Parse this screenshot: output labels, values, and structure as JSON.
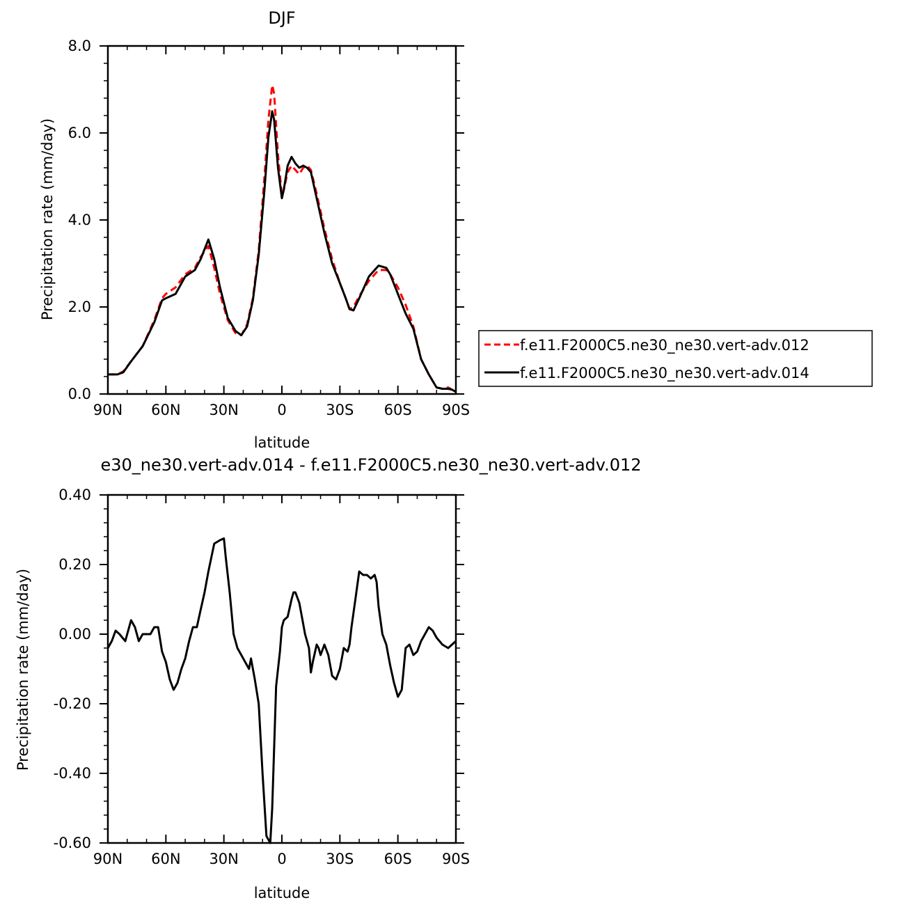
{
  "chart_data": [
    {
      "type": "line",
      "title": "DJF",
      "xlabel": "latitude",
      "ylabel": "Precipitation rate (mm/day)",
      "xlim": [
        -90,
        90
      ],
      "ylim": [
        0,
        8
      ],
      "xticks": [
        -90,
        -60,
        -30,
        0,
        30,
        60,
        90
      ],
      "xtick_labels": [
        "90N",
        "60N",
        "30N",
        "0",
        "30S",
        "60S",
        "90S"
      ],
      "yticks": [
        0,
        2,
        4,
        6,
        8
      ],
      "ytick_labels": [
        "0.0",
        "2.0",
        "4.0",
        "6.0",
        "8.0"
      ],
      "legend_position": "right",
      "series": [
        {
          "name": "f.e11.F2000C5.ne30_ne30.vert-adv.012",
          "color": "#ff0000",
          "dash": "dashed",
          "x": [
            -90,
            -85,
            -82,
            -78,
            -72,
            -66,
            -62,
            -60,
            -55,
            -50,
            -45,
            -42,
            -38,
            -35,
            -32,
            -28,
            -24,
            -21,
            -18,
            -15,
            -12,
            -9,
            -7,
            -5,
            -4,
            -2,
            0,
            1,
            3,
            5,
            7,
            9,
            11,
            13,
            15,
            18,
            22,
            26,
            30,
            33,
            35,
            37,
            40,
            45,
            50,
            54,
            56,
            60,
            64,
            68,
            72,
            76,
            80,
            83,
            86,
            88,
            90
          ],
          "y": [
            0.45,
            0.45,
            0.52,
            0.75,
            1.1,
            1.7,
            2.2,
            2.3,
            2.45,
            2.75,
            2.9,
            3.15,
            3.4,
            2.9,
            2.3,
            1.7,
            1.4,
            1.35,
            1.6,
            2.2,
            3.3,
            5.0,
            6.3,
            7.1,
            6.9,
            5.5,
            4.55,
            4.7,
            5.1,
            5.25,
            5.15,
            5.05,
            5.2,
            5.25,
            5.15,
            4.6,
            3.8,
            3.1,
            2.55,
            2.2,
            1.95,
            2.0,
            2.25,
            2.6,
            2.85,
            2.85,
            2.75,
            2.45,
            2.05,
            1.55,
            0.8,
            0.45,
            0.15,
            0.12,
            0.15,
            0.1,
            0.05
          ]
        },
        {
          "name": "f.e11.F2000C5.ne30_ne30.vert-adv.014",
          "color": "#000000",
          "dash": "solid",
          "x": [
            -90,
            -85,
            -82,
            -78,
            -72,
            -66,
            -62,
            -60,
            -55,
            -50,
            -45,
            -42,
            -38,
            -35,
            -32,
            -28,
            -24,
            -21,
            -18,
            -15,
            -12,
            -9,
            -7,
            -5,
            -4,
            -2,
            0,
            1,
            3,
            5,
            7,
            9,
            11,
            13,
            15,
            18,
            22,
            26,
            30,
            33,
            35,
            37,
            40,
            45,
            50,
            54,
            56,
            60,
            64,
            68,
            72,
            76,
            80,
            83,
            86,
            88,
            90
          ],
          "y": [
            0.45,
            0.45,
            0.5,
            0.75,
            1.1,
            1.65,
            2.15,
            2.2,
            2.3,
            2.7,
            2.85,
            3.1,
            3.55,
            3.1,
            2.45,
            1.75,
            1.45,
            1.35,
            1.55,
            2.15,
            3.2,
            4.7,
            5.9,
            6.5,
            6.3,
            5.2,
            4.5,
            4.7,
            5.25,
            5.45,
            5.3,
            5.2,
            5.25,
            5.2,
            5.1,
            4.5,
            3.7,
            3.0,
            2.55,
            2.2,
            1.95,
            1.92,
            2.2,
            2.7,
            2.95,
            2.9,
            2.75,
            2.3,
            1.85,
            1.5,
            0.8,
            0.45,
            0.15,
            0.12,
            0.12,
            0.1,
            0.05
          ]
        }
      ]
    },
    {
      "type": "line",
      "title": "e30_ne30.vert-adv.014 - f.e11.F2000C5.ne30_ne30.vert-adv.012",
      "xlabel": "latitude",
      "ylabel": "Precipitation rate (mm/day)",
      "xlim": [
        -90,
        90
      ],
      "ylim": [
        -0.6,
        0.4
      ],
      "xticks": [
        -90,
        -60,
        -30,
        0,
        30,
        60,
        90
      ],
      "xtick_labels": [
        "90N",
        "60N",
        "30N",
        "0",
        "30S",
        "60S",
        "90S"
      ],
      "yticks": [
        -0.6,
        -0.4,
        -0.2,
        0,
        0.2,
        0.4
      ],
      "ytick_labels": [
        "-0.60",
        "-0.40",
        "-0.20",
        "0.00",
        "0.20",
        "0.40"
      ],
      "series": [
        {
          "color": "#000000",
          "dash": "solid",
          "x": [
            -90,
            -88,
            -86,
            -84,
            -81,
            -78,
            -76,
            -74,
            -72,
            -70,
            -68,
            -66,
            -64,
            -62,
            -60,
            -58,
            -56,
            -54,
            -52,
            -50,
            -48,
            -46,
            -44,
            -42,
            -40,
            -38,
            -35,
            -32,
            -30,
            -29,
            -27,
            -25,
            -23,
            -21,
            -19,
            -17,
            -16,
            -14,
            -12,
            -10,
            -8,
            -6,
            -5,
            -3,
            -1,
            0,
            1,
            3,
            5,
            6,
            7,
            9,
            10,
            12,
            14,
            15,
            16,
            18,
            19,
            20,
            22,
            24,
            26,
            28,
            30,
            32,
            34,
            35,
            36,
            38,
            40,
            42,
            44,
            46,
            48,
            49,
            50,
            52,
            54,
            56,
            58,
            60,
            62,
            63,
            64,
            66,
            68,
            70,
            72,
            74,
            76,
            78,
            80,
            83,
            86,
            88,
            90
          ],
          "y": [
            -0.04,
            -0.02,
            0.01,
            0.0,
            -0.02,
            0.04,
            0.02,
            -0.02,
            0.0,
            0.0,
            0.0,
            0.02,
            0.02,
            -0.05,
            -0.08,
            -0.13,
            -0.16,
            -0.14,
            -0.1,
            -0.07,
            -0.02,
            0.02,
            0.02,
            0.07,
            0.12,
            0.18,
            0.26,
            0.27,
            0.275,
            0.22,
            0.12,
            0.0,
            -0.04,
            -0.06,
            -0.08,
            -0.1,
            -0.07,
            -0.13,
            -0.2,
            -0.4,
            -0.58,
            -0.6,
            -0.5,
            -0.15,
            -0.05,
            0.02,
            0.04,
            0.05,
            0.1,
            0.12,
            0.12,
            0.09,
            0.06,
            0.0,
            -0.04,
            -0.11,
            -0.08,
            -0.03,
            -0.04,
            -0.06,
            -0.03,
            -0.06,
            -0.12,
            -0.13,
            -0.1,
            -0.04,
            -0.05,
            -0.03,
            0.02,
            0.1,
            0.18,
            0.17,
            0.17,
            0.16,
            0.17,
            0.15,
            0.08,
            0.0,
            -0.03,
            -0.09,
            -0.14,
            -0.18,
            -0.16,
            -0.1,
            -0.04,
            -0.03,
            -0.06,
            -0.05,
            -0.02,
            0.0,
            0.02,
            0.01,
            -0.01,
            -0.03,
            -0.04,
            -0.03,
            -0.02
          ]
        }
      ]
    }
  ]
}
